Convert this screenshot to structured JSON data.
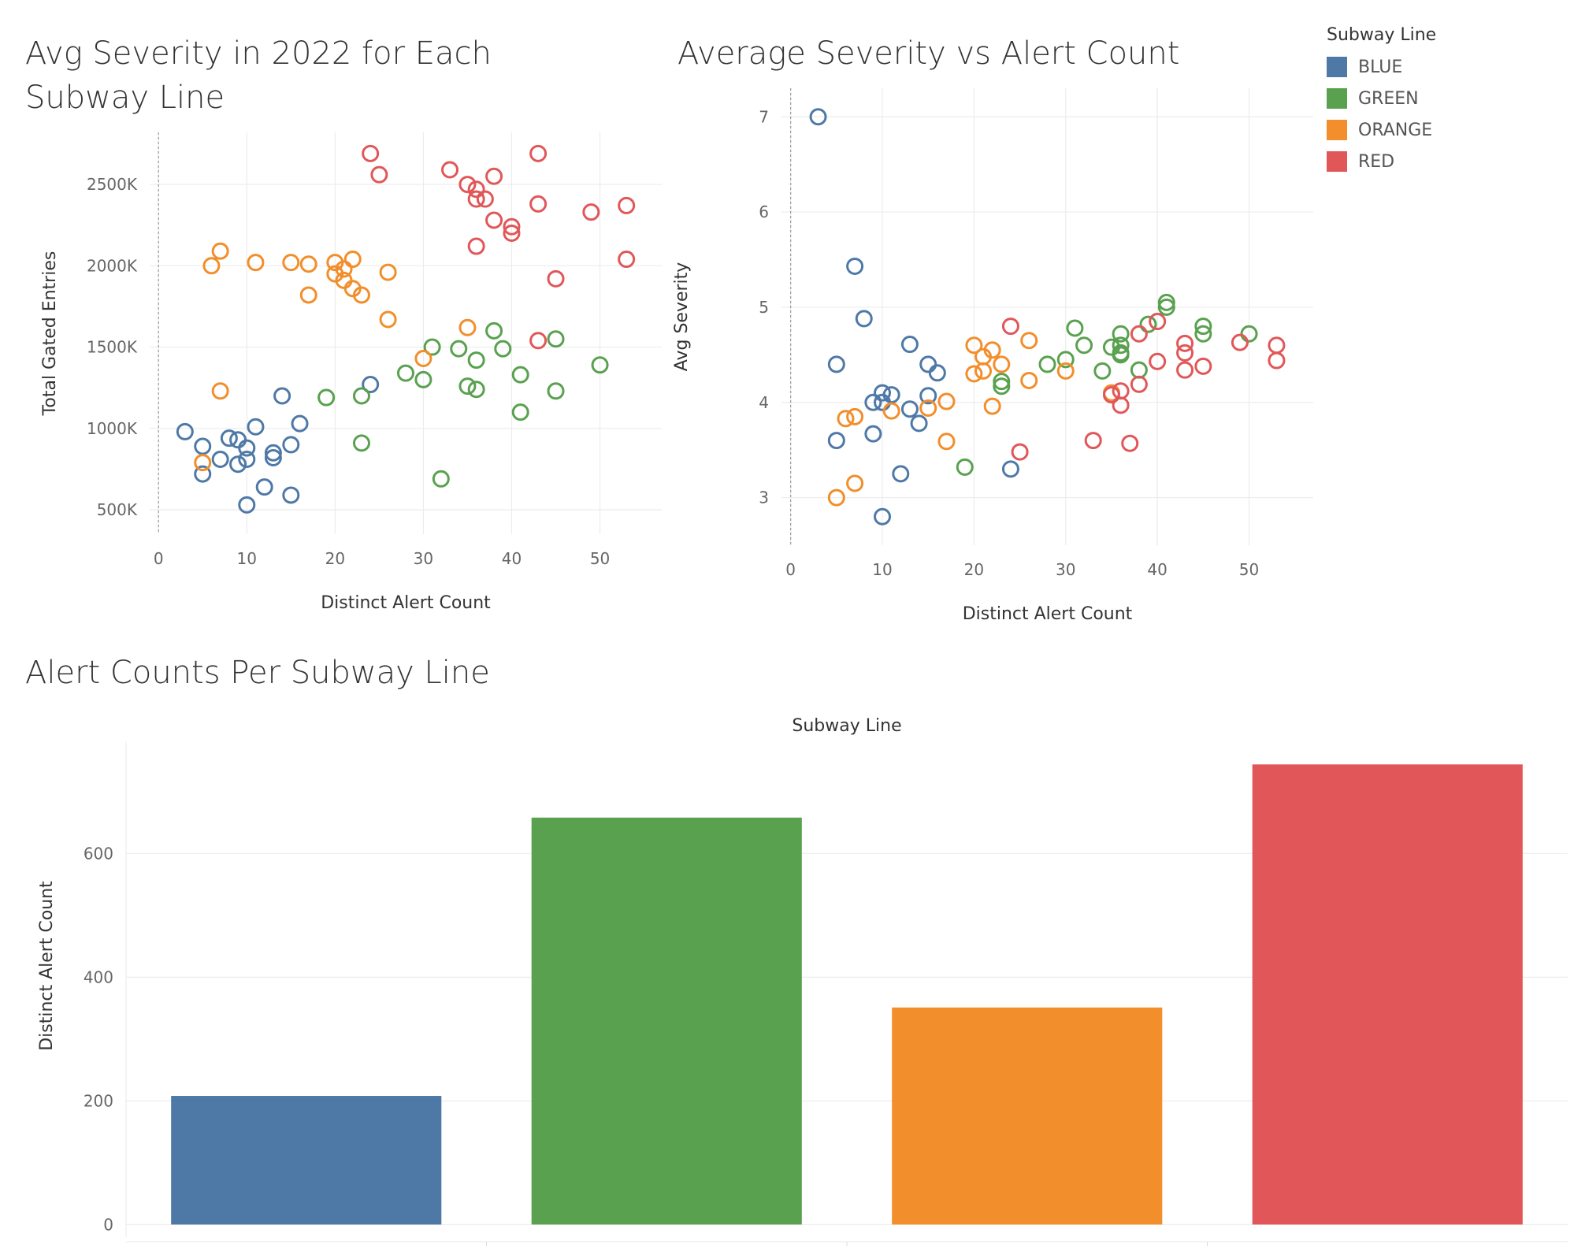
{
  "titles": {
    "scatter1": "Avg Severity in 2022 for Each Subway Line",
    "scatter2": "Average Severity vs Alert Count",
    "bar": "Alert Counts Per Subway Line"
  },
  "legend": {
    "title": "Subway Line",
    "items": [
      {
        "label": "BLUE",
        "color": "#4e79a7"
      },
      {
        "label": "GREEN",
        "color": "#59a14f"
      },
      {
        "label": "ORANGE",
        "color": "#f28e2b"
      },
      {
        "label": "RED",
        "color": "#e15759"
      }
    ]
  },
  "chart_data": [
    {
      "type": "scatter",
      "title": "Avg Severity in 2022 for Each Subway Line",
      "xlabel": "Distinct Alert Count",
      "ylabel": "Total Gated Entries",
      "xlim": [
        -1,
        57
      ],
      "ylim": [
        350000,
        2820000
      ],
      "xticks": [
        0,
        10,
        20,
        30,
        40,
        50
      ],
      "yticks": [
        500000,
        1000000,
        1500000,
        2000000,
        2500000
      ],
      "ytick_labels": [
        "500K",
        "1000K",
        "1500K",
        "2000K",
        "2500K"
      ],
      "series": [
        {
          "name": "BLUE",
          "color": "#4e79a7",
          "points": [
            [
              3,
              980000
            ],
            [
              5,
              890000
            ],
            [
              5,
              720000
            ],
            [
              7,
              810000
            ],
            [
              8,
              940000
            ],
            [
              9,
              930000
            ],
            [
              9,
              780000
            ],
            [
              10,
              880000
            ],
            [
              10,
              810000
            ],
            [
              10,
              530000
            ],
            [
              11,
              1010000
            ],
            [
              12,
              640000
            ],
            [
              13,
              850000
            ],
            [
              13,
              820000
            ],
            [
              14,
              1200000
            ],
            [
              15,
              900000
            ],
            [
              15,
              590000
            ],
            [
              16,
              1030000
            ],
            [
              24,
              1270000
            ]
          ]
        },
        {
          "name": "GREEN",
          "color": "#59a14f",
          "points": [
            [
              19,
              1190000
            ],
            [
              23,
              1200000
            ],
            [
              23,
              910000
            ],
            [
              28,
              1340000
            ],
            [
              30,
              1300000
            ],
            [
              31,
              1500000
            ],
            [
              32,
              690000
            ],
            [
              34,
              1490000
            ],
            [
              35,
              1260000
            ],
            [
              36,
              1420000
            ],
            [
              36,
              1240000
            ],
            [
              38,
              1600000
            ],
            [
              39,
              1490000
            ],
            [
              41,
              1330000
            ],
            [
              41,
              1100000
            ],
            [
              45,
              1550000
            ],
            [
              45,
              1230000
            ],
            [
              50,
              1390000
            ]
          ]
        },
        {
          "name": "ORANGE",
          "color": "#f28e2b",
          "points": [
            [
              5,
              790000
            ],
            [
              6,
              2000000
            ],
            [
              7,
              2090000
            ],
            [
              7,
              1230000
            ],
            [
              11,
              2020000
            ],
            [
              15,
              2020000
            ],
            [
              17,
              2010000
            ],
            [
              17,
              1820000
            ],
            [
              20,
              2020000
            ],
            [
              20,
              1950000
            ],
            [
              21,
              1980000
            ],
            [
              21,
              1910000
            ],
            [
              22,
              2040000
            ],
            [
              22,
              1860000
            ],
            [
              23,
              1820000
            ],
            [
              26,
              1960000
            ],
            [
              26,
              1670000
            ],
            [
              30,
              1430000
            ],
            [
              35,
              1620000
            ]
          ]
        },
        {
          "name": "RED",
          "color": "#e15759",
          "points": [
            [
              24,
              2690000
            ],
            [
              25,
              2560000
            ],
            [
              33,
              2590000
            ],
            [
              35,
              2500000
            ],
            [
              36,
              2470000
            ],
            [
              36,
              2410000
            ],
            [
              37,
              2410000
            ],
            [
              38,
              2550000
            ],
            [
              38,
              2280000
            ],
            [
              40,
              2240000
            ],
            [
              40,
              2200000
            ],
            [
              36,
              2120000
            ],
            [
              43,
              2690000
            ],
            [
              43,
              2380000
            ],
            [
              45,
              1920000
            ],
            [
              49,
              2330000
            ],
            [
              53,
              2370000
            ],
            [
              53,
              2040000
            ],
            [
              43,
              1540000
            ]
          ]
        }
      ]
    },
    {
      "type": "scatter",
      "title": "Average Severity vs Alert Count",
      "xlabel": "Distinct Alert Count",
      "ylabel": "Avg Severity",
      "xlim": [
        -1,
        57
      ],
      "ylim": [
        2.5,
        7.3
      ],
      "xticks": [
        0,
        10,
        20,
        30,
        40,
        50
      ],
      "yticks": [
        3,
        4,
        5,
        6,
        7
      ],
      "ytick_labels": [
        "3",
        "4",
        "5",
        "6",
        "7"
      ],
      "series": [
        {
          "name": "BLUE",
          "color": "#4e79a7",
          "points": [
            [
              3,
              7.0
            ],
            [
              7,
              5.43
            ],
            [
              5,
              4.4
            ],
            [
              8,
              4.88
            ],
            [
              5,
              3.6
            ],
            [
              9,
              4.0
            ],
            [
              10,
              4.1
            ],
            [
              10,
              4.0
            ],
            [
              11,
              4.08
            ],
            [
              9,
              3.67
            ],
            [
              10,
              2.8
            ],
            [
              12,
              3.25
            ],
            [
              13,
              4.61
            ],
            [
              13,
              3.93
            ],
            [
              14,
              3.78
            ],
            [
              15,
              4.4
            ],
            [
              15,
              4.07
            ],
            [
              16,
              4.31
            ],
            [
              24,
              3.3
            ]
          ]
        },
        {
          "name": "GREEN",
          "color": "#59a14f",
          "points": [
            [
              19,
              3.32
            ],
            [
              23,
              4.22
            ],
            [
              23,
              4.17
            ],
            [
              28,
              4.4
            ],
            [
              30,
              4.45
            ],
            [
              31,
              4.78
            ],
            [
              32,
              4.6
            ],
            [
              34,
              4.33
            ],
            [
              35,
              4.58
            ],
            [
              36,
              4.72
            ],
            [
              36,
              4.6
            ],
            [
              36,
              4.52
            ],
            [
              36,
              4.5
            ],
            [
              38,
              4.34
            ],
            [
              39,
              4.82
            ],
            [
              41,
              5.05
            ],
            [
              41,
              5.0
            ],
            [
              45,
              4.8
            ],
            [
              45,
              4.72
            ],
            [
              50,
              4.72
            ]
          ]
        },
        {
          "name": "ORANGE",
          "color": "#f28e2b",
          "points": [
            [
              5,
              3.0
            ],
            [
              6,
              3.83
            ],
            [
              7,
              3.85
            ],
            [
              7,
              3.15
            ],
            [
              11,
              3.91
            ],
            [
              15,
              3.94
            ],
            [
              17,
              4.01
            ],
            [
              17,
              3.59
            ],
            [
              20,
              4.6
            ],
            [
              20,
              4.3
            ],
            [
              21,
              4.48
            ],
            [
              21,
              4.33
            ],
            [
              22,
              4.55
            ],
            [
              22,
              3.96
            ],
            [
              23,
              4.4
            ],
            [
              26,
              4.65
            ],
            [
              26,
              4.23
            ],
            [
              30,
              4.33
            ],
            [
              35,
              4.1
            ]
          ]
        },
        {
          "name": "RED",
          "color": "#e15759",
          "points": [
            [
              24,
              4.8
            ],
            [
              25,
              3.48
            ],
            [
              33,
              3.6
            ],
            [
              35,
              4.08
            ],
            [
              36,
              4.12
            ],
            [
              36,
              3.97
            ],
            [
              37,
              3.57
            ],
            [
              38,
              4.72
            ],
            [
              38,
              4.19
            ],
            [
              40,
              4.85
            ],
            [
              40,
              4.43
            ],
            [
              43,
              4.62
            ],
            [
              43,
              4.52
            ],
            [
              43,
              4.34
            ],
            [
              45,
              4.38
            ],
            [
              49,
              4.63
            ],
            [
              53,
              4.6
            ],
            [
              53,
              4.44
            ]
          ]
        }
      ]
    },
    {
      "type": "bar",
      "title": "Alert Counts Per Subway Line",
      "xlabel": "Subway Line",
      "ylabel": "Distinct Alert Count",
      "ylim": [
        -20,
        780
      ],
      "yticks": [
        0,
        200,
        400,
        600
      ],
      "categories": [
        "BLUE",
        "GREEN",
        "ORANGE",
        "RED"
      ],
      "values": [
        208,
        658,
        351,
        744
      ],
      "colors": [
        "#4e79a7",
        "#59a14f",
        "#f28e2b",
        "#e15759"
      ]
    }
  ]
}
